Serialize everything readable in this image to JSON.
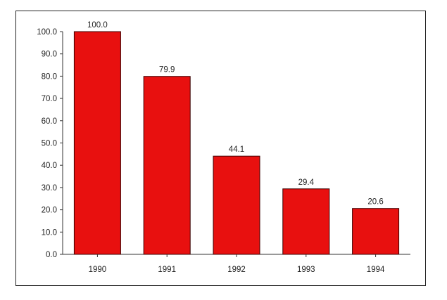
{
  "chart_data": {
    "type": "bar",
    "title": "",
    "xlabel": "",
    "ylabel": "",
    "categories": [
      "1990",
      "1991",
      "1992",
      "1993",
      "1994"
    ],
    "values": [
      100.0,
      79.9,
      44.1,
      29.4,
      20.6
    ],
    "value_labels": [
      "100.0",
      "79.9",
      "44.1",
      "29.4",
      "20.6"
    ],
    "ylim": [
      0,
      100
    ],
    "yticks": [
      "0.0",
      "10.0",
      "20.0",
      "30.0",
      "40.0",
      "50.0",
      "60.0",
      "70.0",
      "80.0",
      "90.0",
      "100.0"
    ],
    "bar_color": "#e8100f",
    "bar_edge_color": "#3a0000",
    "grid": false,
    "legend": "none"
  }
}
